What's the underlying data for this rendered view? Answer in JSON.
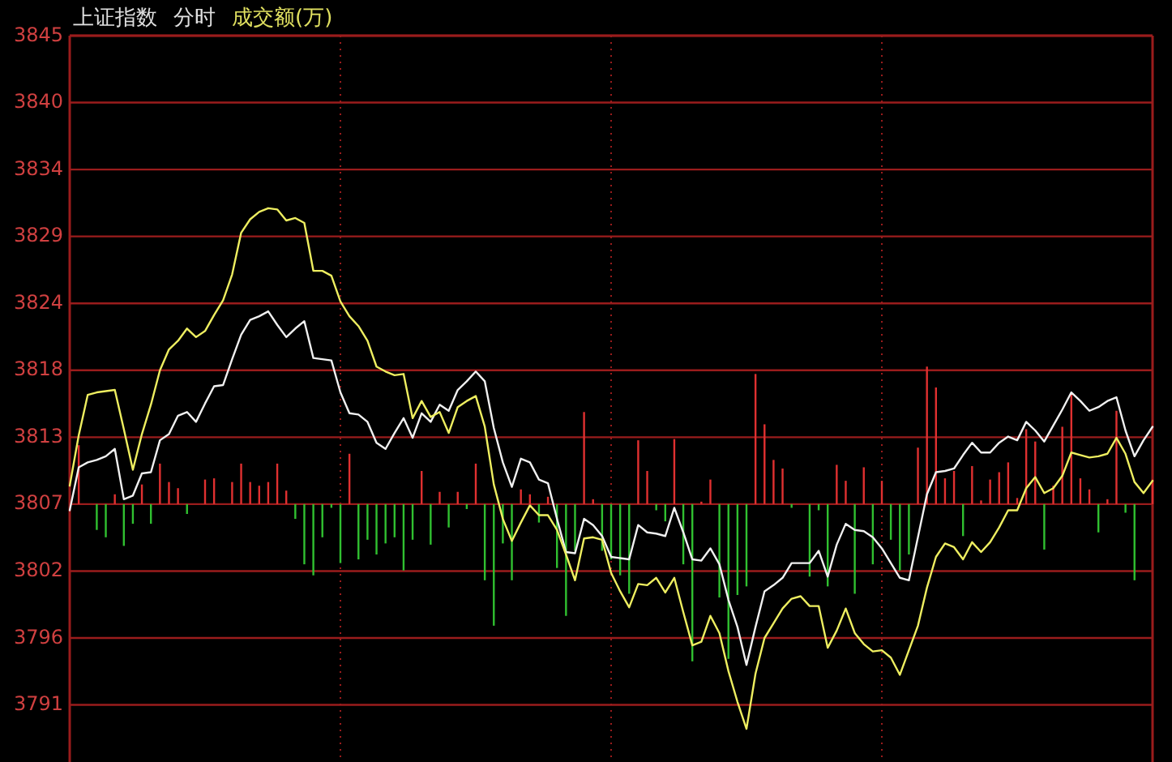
{
  "chart_data": {
    "type": "line",
    "title": "上证指数",
    "subtitle": "分时",
    "annotations": [
      "成交额(万)"
    ],
    "categories": [
      null,
      null,
      null,
      null,
      null,
      null,
      null,
      null,
      null,
      null,
      null,
      null,
      null,
      null,
      null,
      null,
      null,
      null,
      null,
      null,
      null,
      null,
      null,
      null,
      null,
      null,
      null,
      null,
      null,
      null,
      null,
      null,
      null,
      null,
      null,
      null,
      null,
      null,
      null,
      null,
      null,
      null,
      null,
      null,
      null,
      null,
      null,
      null,
      null,
      null,
      null,
      null,
      null,
      null,
      null,
      null,
      null,
      null,
      null,
      null,
      null,
      null,
      null,
      null,
      null,
      null,
      null,
      null,
      null,
      null,
      null,
      null,
      null,
      null,
      null,
      null,
      null,
      null,
      null,
      null,
      null,
      null,
      null,
      null,
      null,
      null,
      null,
      null,
      null,
      null,
      null,
      null,
      null,
      null,
      null,
      null,
      null,
      null,
      null,
      null,
      null,
      null,
      null,
      null,
      null,
      null,
      null,
      null,
      null,
      null,
      null,
      null,
      null,
      null,
      null,
      null,
      null,
      null,
      null,
      null,
      null
    ],
    "ylim": [
      3786.2,
      3845.35
    ],
    "yticks": [
      {
        "value": 3790.85,
        "label": "3791"
      },
      {
        "value": 3796.3,
        "label": "3796"
      },
      {
        "value": 3801.75,
        "label": "3802"
      },
      {
        "value": 3807.2,
        "label": "3807"
      },
      {
        "value": 3812.65,
        "label": "3813"
      },
      {
        "value": 3818.1,
        "label": "3818"
      },
      {
        "value": 3823.55,
        "label": "3824"
      },
      {
        "value": 3829.0,
        "label": "3829"
      },
      {
        "value": 3834.45,
        "label": "3834"
      },
      {
        "value": 3839.9,
        "label": "3840"
      },
      {
        "value": 3845.35,
        "label": "3845"
      }
    ],
    "grid": true,
    "tick_labels": "y",
    "series": [
      {
        "type": "bar",
        "color": "#e03030",
        "base": [
          null,
          3807.2,
          null,
          null,
          null,
          3807.2,
          null,
          null,
          3807.2,
          null,
          3807.2,
          3807.2,
          3807.2,
          null,
          null,
          3807.2,
          3807.2,
          null,
          3807.2,
          3807.2,
          3807.2,
          3807.2,
          3807.2,
          3807.2,
          3807.2,
          null,
          null,
          null,
          null,
          null,
          null,
          3807.2,
          null,
          null,
          null,
          null,
          null,
          null,
          null,
          3807.2,
          null,
          3807.2,
          null,
          3807.2,
          null,
          3807.2,
          null,
          null,
          null,
          null,
          3807.2,
          3807.2,
          null,
          3807.2,
          null,
          null,
          null,
          3807.2,
          3807.2,
          null,
          null,
          null,
          null,
          3807.2,
          3807.2,
          null,
          null,
          3807.2,
          null,
          null,
          3807.2,
          3807.2,
          null,
          null,
          null,
          null,
          3807.2,
          3807.2,
          3807.2,
          3807.2,
          null,
          null,
          null,
          null,
          null,
          3807.2,
          3807.2,
          null,
          3807.2,
          null,
          3807.2,
          null,
          null,
          null,
          3807.2,
          3807.2,
          3807.2,
          3807.2,
          3807.2,
          null,
          3807.2,
          3807.2,
          3807.2,
          3807.2,
          3807.2,
          3807.2,
          3807.2,
          3807.2,
          null,
          3807.2,
          3807.2,
          3807.2,
          3807.2,
          3807.2,
          null,
          3807.2,
          3807.2,
          null,
          null,
          null,
          3807.2
        ],
        "values": [
          null,
          4.8,
          null,
          null,
          null,
          0.8,
          null,
          null,
          1.6,
          null,
          3.3,
          1.8,
          1.3,
          null,
          null,
          2.0,
          2.1,
          null,
          1.8,
          3.3,
          1.8,
          1.5,
          1.8,
          3.3,
          1.1,
          null,
          null,
          null,
          null,
          null,
          null,
          4.1,
          null,
          null,
          null,
          null,
          null,
          null,
          null,
          2.7,
          null,
          1.0,
          null,
          1.0,
          null,
          3.3,
          null,
          null,
          null,
          null,
          1.2,
          0.8,
          null,
          0.6,
          null,
          null,
          null,
          7.5,
          0.4,
          null,
          null,
          null,
          null,
          5.2,
          2.7,
          null,
          null,
          5.3,
          null,
          null,
          0.2,
          2.0,
          null,
          null,
          null,
          null,
          10.6,
          6.5,
          3.6,
          2.9,
          null,
          null,
          null,
          null,
          null,
          3.2,
          1.9,
          null,
          3.0,
          null,
          1.9,
          null,
          null,
          null,
          4.6,
          11.2,
          9.5,
          2.1,
          2.7,
          null,
          3.1,
          0.3,
          2.0,
          2.6,
          3.4,
          0.5,
          6.1,
          5.1,
          null,
          1.5,
          6.3,
          9.0,
          2.1,
          1.2,
          null,
          0.4,
          7.6,
          null,
          null,
          null,
          2.0
        ]
      },
      {
        "type": "bar",
        "color": "#30c030",
        "base": [
          null,
          null,
          null,
          3807.2,
          3807.2,
          null,
          3807.2,
          3807.2,
          null,
          3807.2,
          null,
          null,
          null,
          3807.2,
          null,
          null,
          null,
          null,
          null,
          null,
          null,
          null,
          null,
          null,
          null,
          3807.2,
          3807.2,
          3807.2,
          3807.2,
          3807.2,
          3807.2,
          null,
          3807.2,
          3807.2,
          3807.2,
          3807.2,
          3807.2,
          3807.2,
          3807.2,
          null,
          3807.2,
          null,
          3807.2,
          null,
          3807.2,
          null,
          3807.2,
          3807.2,
          3807.2,
          3807.2,
          null,
          null,
          3807.2,
          null,
          3807.2,
          3807.2,
          3807.2,
          null,
          null,
          3807.2,
          3807.2,
          3807.2,
          3807.2,
          null,
          null,
          3807.2,
          3807.2,
          null,
          3807.2,
          3807.2,
          null,
          null,
          3807.2,
          3807.2,
          3807.2,
          3807.2,
          null,
          null,
          null,
          null,
          3807.2,
          null,
          3807.2,
          3807.2,
          3807.2,
          null,
          null,
          3807.2,
          null,
          3807.2,
          null,
          3807.2,
          3807.2,
          3807.2,
          null,
          null,
          null,
          null,
          null,
          3807.2,
          null,
          null,
          null,
          null,
          null,
          null,
          null,
          null,
          3807.2,
          null,
          null,
          null,
          null,
          null,
          3807.2,
          null,
          null,
          3807.2,
          3807.2,
          null,
          null
        ],
        "values": [
          null,
          null,
          null,
          -2.1,
          -2.7,
          null,
          -3.4,
          -1.6,
          null,
          -1.6,
          null,
          null,
          null,
          -0.8,
          null,
          null,
          null,
          null,
          null,
          null,
          null,
          null,
          null,
          null,
          null,
          -1.2,
          -4.9,
          -5.8,
          -2.7,
          -0.3,
          -4.8,
          null,
          -4.5,
          -2.9,
          -4.1,
          -3.2,
          -2.7,
          -5.4,
          -2.9,
          null,
          -3.3,
          null,
          -1.9,
          null,
          -0.4,
          null,
          -6.2,
          -9.9,
          -3.2,
          -6.2,
          null,
          null,
          -1.5,
          null,
          -5.2,
          -9.1,
          -3.8,
          null,
          null,
          -3.8,
          -4.5,
          -5.8,
          -7.3,
          null,
          null,
          -0.5,
          -1.4,
          null,
          -4.9,
          -12.8,
          null,
          null,
          -7.6,
          -12.6,
          -7.4,
          -6.7,
          null,
          null,
          null,
          null,
          -0.3,
          null,
          -5.9,
          -0.5,
          -6.7,
          null,
          null,
          -7.3,
          null,
          -4.9,
          null,
          -2.9,
          -5.4,
          -4.1,
          null,
          null,
          null,
          null,
          null,
          -2.6,
          null,
          null,
          null,
          null,
          null,
          null,
          null,
          null,
          -3.7,
          null,
          null,
          null,
          null,
          null,
          -2.3,
          null,
          null,
          -0.7,
          -6.2,
          null,
          null
        ]
      },
      {
        "color": "#f0f0f0",
        "values": [
          3806.7,
          3810.2,
          3810.6,
          3810.8,
          3811.1,
          3811.7,
          3807.6,
          3807.9,
          3809.7,
          3809.8,
          3812.4,
          3812.9,
          3814.4,
          3814.7,
          3813.9,
          3815.4,
          3816.8,
          3816.9,
          3819.0,
          3821.0,
          3822.2,
          3822.5,
          3822.9,
          3821.8,
          3820.8,
          3821.5,
          3822.1,
          3819.1,
          3819.0,
          3818.9,
          3816.3,
          3814.6,
          3814.5,
          3813.9,
          3812.2,
          3811.7,
          3813.0,
          3814.2,
          3812.6,
          3814.6,
          3813.9,
          3815.3,
          3814.8,
          3816.5,
          3817.2,
          3818.0,
          3817.2,
          3813.4,
          3810.6,
          3808.6,
          3810.9,
          3810.6,
          3809.2,
          3808.9,
          3806.0,
          3803.3,
          3803.2,
          3806.0,
          3805.5,
          3804.6,
          3802.9,
          3802.8,
          3802.7,
          3805.5,
          3804.9,
          3804.8,
          3804.6,
          3806.9,
          3804.9,
          3802.7,
          3802.6,
          3803.6,
          3802.3,
          3799.4,
          3797.2,
          3794.1,
          3797.2,
          3800.1,
          3800.6,
          3801.2,
          3802.4,
          3802.4,
          3802.4,
          3803.4,
          3801.3,
          3803.9,
          3805.6,
          3805.1,
          3805.0,
          3804.5,
          3803.6,
          3802.4,
          3801.2,
          3801.0,
          3804.5,
          3808.0,
          3809.8,
          3809.9,
          3810.1,
          3811.2,
          3812.2,
          3811.4,
          3811.4,
          3812.2,
          3812.7,
          3812.4,
          3813.9,
          3813.2,
          3812.3,
          3813.6,
          3814.9,
          3816.3,
          3815.6,
          3814.8,
          3815.1,
          3815.6,
          3815.9,
          3813.2,
          3811.1,
          3812.4,
          3813.5
        ]
      },
      {
        "color": "#eeee60",
        "values": [
          3808.7,
          3812.8,
          3816.1,
          3816.3,
          3816.4,
          3816.5,
          3813.3,
          3810.0,
          3812.9,
          3815.3,
          3818.1,
          3819.8,
          3820.5,
          3821.5,
          3820.8,
          3821.3,
          3822.6,
          3823.8,
          3825.9,
          3829.3,
          3830.4,
          3831.0,
          3831.3,
          3831.2,
          3830.3,
          3830.5,
          3830.1,
          3826.2,
          3826.2,
          3825.8,
          3823.7,
          3822.5,
          3821.7,
          3820.5,
          3818.4,
          3818.0,
          3817.7,
          3817.8,
          3814.2,
          3815.6,
          3814.3,
          3814.7,
          3813.0,
          3815.1,
          3815.6,
          3816.0,
          3813.5,
          3808.8,
          3806.0,
          3804.2,
          3805.7,
          3807.1,
          3806.3,
          3806.3,
          3805.1,
          3803.1,
          3801.0,
          3804.4,
          3804.5,
          3804.3,
          3801.6,
          3800.1,
          3798.8,
          3800.7,
          3800.6,
          3801.2,
          3800.0,
          3801.2,
          3798.4,
          3795.7,
          3796.0,
          3798.1,
          3796.7,
          3793.6,
          3791.1,
          3788.9,
          3793.4,
          3796.3,
          3797.5,
          3798.7,
          3799.5,
          3799.7,
          3798.9,
          3798.9,
          3795.5,
          3796.9,
          3798.7,
          3796.7,
          3795.8,
          3795.2,
          3795.3,
          3794.7,
          3793.3,
          3795.3,
          3797.3,
          3800.4,
          3802.9,
          3804.0,
          3803.7,
          3802.7,
          3804.1,
          3803.3,
          3804.1,
          3805.3,
          3806.7,
          3806.7,
          3808.5,
          3809.4,
          3808.1,
          3808.5,
          3809.5,
          3811.4,
          3811.2,
          3811.0,
          3811.1,
          3811.3,
          3812.6,
          3811.3,
          3809.0,
          3808.1,
          3809.1
        ]
      }
    ]
  }
}
